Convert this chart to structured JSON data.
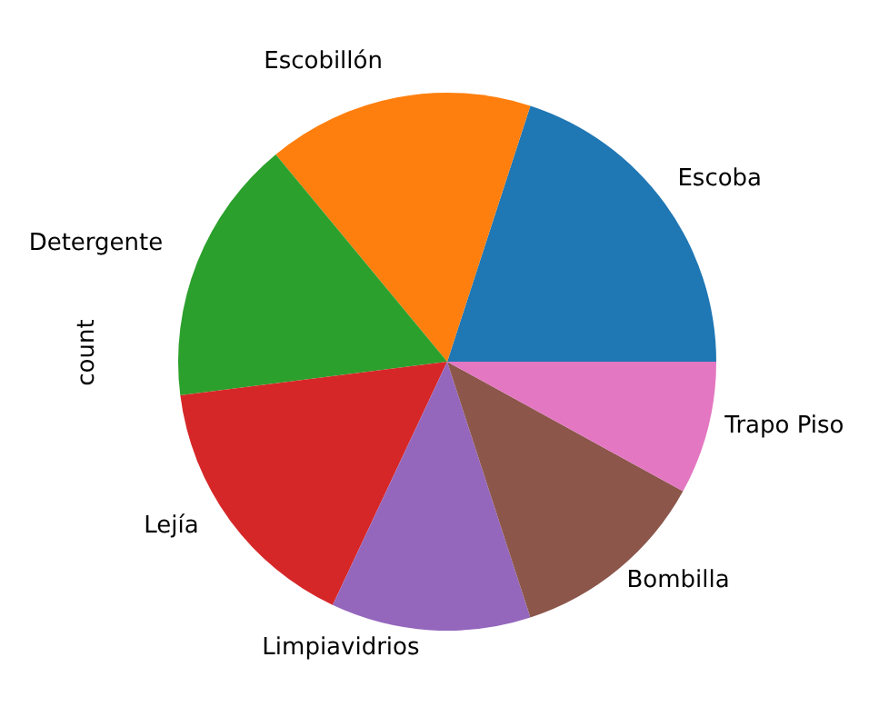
{
  "chart_data": {
    "type": "pie",
    "ylabel": "count",
    "categories": [
      "Escoba",
      "Escobillón",
      "Detergente",
      "Lejía",
      "Limpiavidrios",
      "Bombilla",
      "Trapo Piso"
    ],
    "values": [
      20,
      16,
      16,
      16,
      12,
      12,
      8
    ],
    "colors": [
      "#1f77b4",
      "#ff7f0e",
      "#2ca02c",
      "#d62728",
      "#9467bd",
      "#8c564b",
      "#e377c2"
    ]
  }
}
